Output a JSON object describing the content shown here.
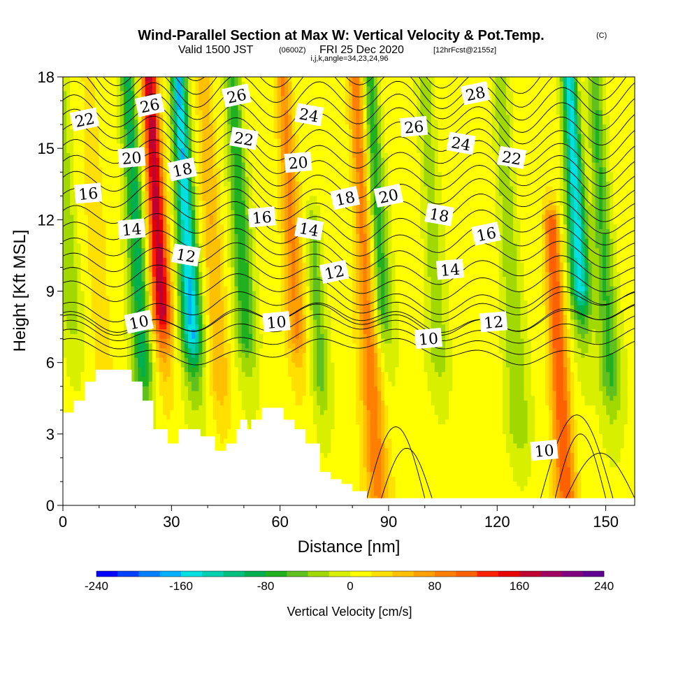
{
  "title": {
    "main": "Wind-Parallel Section at Max W: Vertical Velocity & Pot.Temp.",
    "copyright": "(C)",
    "valid_prefix": "Valid 1500 JST",
    "valid_utc": "(0600Z)",
    "valid_date": "FRI 25 Dec 2020",
    "forecast": "[12hrFcst@2155z]",
    "indices": "i,j,k,angle=34,23,24,96"
  },
  "chart_data": {
    "type": "heatmap",
    "xlabel": "Distance [nm]",
    "ylabel": "Height [Kft MSL]",
    "xlim": [
      0,
      158
    ],
    "ylim": [
      0,
      18
    ],
    "x_ticks": [
      0,
      30,
      60,
      90,
      120,
      150
    ],
    "y_ticks": [
      0,
      3,
      6,
      9,
      12,
      15,
      18
    ],
    "colorbar": {
      "title": "Vertical Velocity [cm/s]",
      "min": -240,
      "max": 240,
      "tick_values": [
        -240,
        -160,
        -80,
        0,
        80,
        160,
        240
      ],
      "tick_labels": [
        "-240",
        "-160",
        "-80",
        "0",
        "80",
        "160",
        "240"
      ],
      "colors": [
        "#0000ff",
        "#0040ff",
        "#0080ff",
        "#00b0ff",
        "#00e0e0",
        "#00d0b0",
        "#00c080",
        "#00b050",
        "#20b020",
        "#60c020",
        "#a0d800",
        "#d8f000",
        "#ffff00",
        "#ffe000",
        "#ffc000",
        "#ffa000",
        "#ff8000",
        "#ff6000",
        "#ff2000",
        "#e80000",
        "#c00030",
        "#a00060",
        "#800080",
        "#600090"
      ]
    },
    "w_features": [
      {
        "x": 2,
        "top": 18,
        "bottom": 8,
        "w": -45
      },
      {
        "x": 10,
        "top": 18,
        "bottom": 0,
        "w": 25
      },
      {
        "x": 21,
        "top": 18,
        "bottom": 5.5,
        "w": -100
      },
      {
        "x": 27,
        "top": 18,
        "bottom": 8,
        "w": 170
      },
      {
        "x": 35,
        "top": 18,
        "bottom": 7,
        "w": -170
      },
      {
        "x": 42,
        "top": 18,
        "bottom": 5,
        "w": 50
      },
      {
        "x": 50,
        "top": 18,
        "bottom": 7,
        "w": -85
      },
      {
        "x": 64,
        "top": 18,
        "bottom": 7,
        "w": 75
      },
      {
        "x": 70,
        "top": 12,
        "bottom": 5,
        "w": -55
      },
      {
        "x": 84,
        "top": 18,
        "bottom": 0.5,
        "w": 85
      },
      {
        "x": 88,
        "top": 18,
        "bottom": 8,
        "w": -80
      },
      {
        "x": 103,
        "top": 18,
        "bottom": 6,
        "w": -40
      },
      {
        "x": 124,
        "top": 18,
        "bottom": 3,
        "w": -45
      },
      {
        "x": 136,
        "top": 12,
        "bottom": 0,
        "w": 110
      },
      {
        "x": 143,
        "top": 18,
        "bottom": 9,
        "w": -160
      },
      {
        "x": 150,
        "top": 18,
        "bottom": 5,
        "w": -70
      }
    ],
    "theta_contours": {
      "interval_C": 1,
      "labeled_levels": [
        "10",
        "12",
        "14",
        "16",
        "18",
        "20",
        "22",
        "24",
        "26",
        "28"
      ]
    },
    "contour_labels": [
      {
        "text": "26",
        "x": 24,
        "y": 16.8
      },
      {
        "text": "26",
        "x": 48,
        "y": 17.2
      },
      {
        "text": "22",
        "x": 6,
        "y": 16.2
      },
      {
        "text": "24",
        "x": 68,
        "y": 16.4
      },
      {
        "text": "28",
        "x": 114,
        "y": 17.3
      },
      {
        "text": "26",
        "x": 97,
        "y": 15.9
      },
      {
        "text": "20",
        "x": 19,
        "y": 14.6
      },
      {
        "text": "18",
        "x": 33,
        "y": 14.1
      },
      {
        "text": "22",
        "x": 50,
        "y": 15.4
      },
      {
        "text": "20",
        "x": 65,
        "y": 14.4
      },
      {
        "text": "24",
        "x": 110,
        "y": 15.2
      },
      {
        "text": "22",
        "x": 124,
        "y": 14.6
      },
      {
        "text": "16",
        "x": 7,
        "y": 13.1
      },
      {
        "text": "18",
        "x": 78,
        "y": 12.9
      },
      {
        "text": "20",
        "x": 90,
        "y": 13.0
      },
      {
        "text": "16",
        "x": 55,
        "y": 12.1
      },
      {
        "text": "18",
        "x": 104,
        "y": 12.2
      },
      {
        "text": "14",
        "x": 19,
        "y": 11.6
      },
      {
        "text": "14",
        "x": 68,
        "y": 11.6
      },
      {
        "text": "16",
        "x": 117,
        "y": 11.4
      },
      {
        "text": "12",
        "x": 34,
        "y": 10.5
      },
      {
        "text": "12",
        "x": 75,
        "y": 9.8
      },
      {
        "text": "14",
        "x": 107,
        "y": 9.9
      },
      {
        "text": "10",
        "x": 21,
        "y": 7.7
      },
      {
        "text": "10",
        "x": 59,
        "y": 7.7
      },
      {
        "text": "10",
        "x": 101,
        "y": 7.0
      },
      {
        "text": "12",
        "x": 119,
        "y": 7.7
      },
      {
        "text": "10",
        "x": 133,
        "y": 2.3
      }
    ],
    "terrain_profile": [
      [
        0,
        0
      ],
      [
        0,
        3.9
      ],
      [
        3,
        3.9
      ],
      [
        3,
        4.4
      ],
      [
        6,
        4.4
      ],
      [
        6,
        5.2
      ],
      [
        9,
        5.2
      ],
      [
        9,
        5.7
      ],
      [
        19,
        5.7
      ],
      [
        19,
        5.2
      ],
      [
        22,
        5.2
      ],
      [
        22,
        4.4
      ],
      [
        25,
        4.4
      ],
      [
        25,
        3.2
      ],
      [
        29,
        3.2
      ],
      [
        29,
        2.6
      ],
      [
        32,
        2.6
      ],
      [
        32,
        3.2
      ],
      [
        38,
        3.2
      ],
      [
        38,
        2.9
      ],
      [
        42,
        2.9
      ],
      [
        42,
        2.3
      ],
      [
        45,
        2.3
      ],
      [
        45,
        2.6
      ],
      [
        48,
        2.6
      ],
      [
        48,
        3.2
      ],
      [
        49,
        3.2
      ],
      [
        49,
        3.6
      ],
      [
        51,
        3.6
      ],
      [
        51,
        3.2
      ],
      [
        52,
        3.2
      ],
      [
        52,
        3.6
      ],
      [
        55,
        3.6
      ],
      [
        55,
        4.1
      ],
      [
        61,
        4.1
      ],
      [
        61,
        3.6
      ],
      [
        64,
        3.6
      ],
      [
        64,
        3.2
      ],
      [
        67,
        3.2
      ],
      [
        67,
        2.6
      ],
      [
        71,
        2.6
      ],
      [
        71,
        1.4
      ],
      [
        74,
        1.4
      ],
      [
        74,
        1.1
      ],
      [
        77,
        1.1
      ],
      [
        77,
        0.9
      ],
      [
        80,
        0.9
      ],
      [
        80,
        0.6
      ],
      [
        84,
        0.6
      ],
      [
        84,
        0.3
      ],
      [
        158,
        0.3
      ],
      [
        158,
        0
      ]
    ]
  }
}
